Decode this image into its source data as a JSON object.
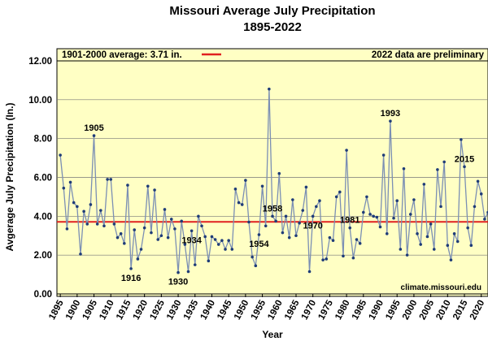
{
  "chart_data": {
    "type": "line",
    "title": "Missouri Average July Precipitation",
    "subtitle": "1895-2022",
    "xlabel": "Year",
    "ylabel": "Avgerage July Precipitation  (In.)",
    "xlim": [
      1894,
      2022
    ],
    "ylim": [
      0,
      12
    ],
    "y_ticks": [
      "0.00",
      "2.00",
      "4.00",
      "6.00",
      "8.00",
      "10.00",
      "12.00"
    ],
    "x_ticks": [
      "1895",
      "1900",
      "1905",
      "1910",
      "1915",
      "1920",
      "1925",
      "1930",
      "1935",
      "1940",
      "1945",
      "1950",
      "1955",
      "1960",
      "1965",
      "1970",
      "1975",
      "1980",
      "1985",
      "1990",
      "1995",
      "2000",
      "2005",
      "2010",
      "2015",
      "2020"
    ],
    "grid": true,
    "background": "#ffffc4",
    "line_color": "#7b8fb4",
    "marker_color": "#1f3c78",
    "reference_line": {
      "label": "1901-2000 average: 3.71 in.",
      "value": 3.71,
      "color": "#e02020"
    },
    "note": "2022 data are preliminary",
    "credit": "climate.missouri.edu",
    "x": [
      1895,
      1896,
      1897,
      1898,
      1899,
      1900,
      1901,
      1902,
      1903,
      1904,
      1905,
      1906,
      1907,
      1908,
      1909,
      1910,
      1911,
      1912,
      1913,
      1914,
      1915,
      1916,
      1917,
      1918,
      1919,
      1920,
      1921,
      1922,
      1923,
      1924,
      1925,
      1926,
      1927,
      1928,
      1929,
      1930,
      1931,
      1932,
      1933,
      1934,
      1935,
      1936,
      1937,
      1938,
      1939,
      1940,
      1941,
      1942,
      1943,
      1944,
      1945,
      1946,
      1947,
      1948,
      1949,
      1950,
      1951,
      1952,
      1953,
      1954,
      1955,
      1956,
      1957,
      1958,
      1959,
      1960,
      1961,
      1962,
      1963,
      1964,
      1965,
      1966,
      1967,
      1968,
      1969,
      1970,
      1971,
      1972,
      1973,
      1974,
      1975,
      1976,
      1977,
      1978,
      1979,
      1980,
      1981,
      1982,
      1983,
      1984,
      1985,
      1986,
      1987,
      1988,
      1989,
      1990,
      1991,
      1992,
      1993,
      1994,
      1995,
      1996,
      1997,
      1998,
      1999,
      2000,
      2001,
      2002,
      2003,
      2004,
      2005,
      2006,
      2007,
      2008,
      2009,
      2010,
      2011,
      2012,
      2013,
      2014,
      2015,
      2016,
      2017,
      2018,
      2019,
      2020,
      2021,
      2022
    ],
    "values": [
      7.15,
      5.45,
      3.35,
      5.75,
      4.7,
      4.5,
      2.05,
      4.25,
      3.6,
      4.6,
      8.15,
      3.6,
      4.3,
      3.5,
      5.9,
      5.9,
      3.6,
      2.9,
      3.1,
      2.6,
      5.6,
      1.3,
      3.3,
      1.8,
      2.3,
      3.4,
      5.55,
      3.15,
      5.35,
      2.8,
      3.0,
      4.35,
      2.9,
      3.85,
      3.35,
      1.1,
      3.75,
      2.55,
      1.15,
      3.25,
      1.5,
      4.0,
      3.5,
      2.95,
      1.7,
      2.95,
      2.8,
      2.55,
      2.75,
      2.3,
      2.75,
      2.3,
      5.4,
      4.7,
      4.6,
      5.85,
      3.7,
      1.9,
      1.45,
      3.05,
      5.55,
      3.5,
      10.55,
      4.0,
      3.75,
      6.2,
      3.15,
      4.0,
      2.9,
      4.85,
      3.0,
      3.65,
      4.3,
      5.5,
      1.15,
      4.0,
      4.5,
      4.8,
      1.75,
      1.8,
      2.9,
      2.75,
      5.0,
      5.25,
      1.95,
      7.4,
      3.4,
      1.85,
      2.8,
      2.6,
      4.2,
      5.0,
      4.1,
      4.0,
      3.95,
      3.45,
      7.15,
      3.1,
      8.9,
      3.9,
      4.8,
      2.3,
      6.45,
      2.0,
      4.1,
      4.85,
      3.1,
      2.55,
      5.65,
      2.95,
      3.6,
      2.3,
      6.4,
      4.5,
      6.8,
      2.5,
      1.75,
      3.1,
      2.7,
      7.95,
      6.55,
      3.4,
      2.5,
      4.5,
      5.8,
      5.15,
      3.85,
      4.2
    ],
    "annotations": [
      {
        "year": 1905,
        "label": "1905",
        "position": "above"
      },
      {
        "year": 1916,
        "label": "1916",
        "position": "below"
      },
      {
        "year": 1930,
        "label": "1930",
        "position": "below"
      },
      {
        "year": 1934,
        "label": "1934",
        "position": "below"
      },
      {
        "year": 1954,
        "label": "1954",
        "position": "below"
      },
      {
        "year": 1958,
        "label": "1958",
        "position": "above"
      },
      {
        "year": 1970,
        "label": "1970",
        "position": "below"
      },
      {
        "year": 1981,
        "label": "1981",
        "position": "above"
      },
      {
        "year": 1993,
        "label": "1993",
        "position": "above"
      },
      {
        "year": 2015,
        "label": "2015",
        "position": "above"
      }
    ]
  }
}
